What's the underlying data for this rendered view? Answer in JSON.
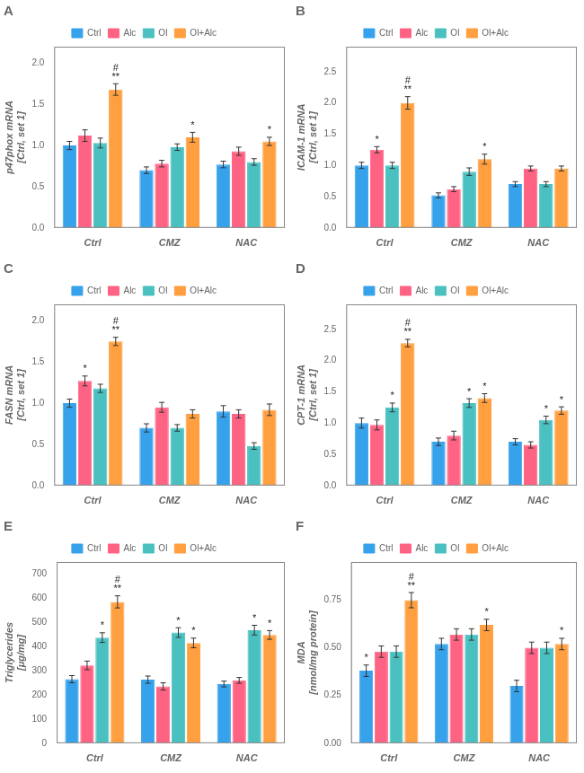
{
  "chart_data": [
    {
      "type": "bar",
      "title": "A",
      "ylabel": "p47phox mRNA\n[Ctrl, set 1]",
      "categories": [
        "Ctrl",
        "CMZ",
        "NAC"
      ],
      "series": [
        {
          "name": "Ctrl",
          "color": "#36a2eb",
          "values": [
            1.0,
            0.7,
            0.77
          ],
          "errors": [
            0.05,
            0.04,
            0.04
          ]
        },
        {
          "name": "Alc",
          "color": "#ff6384",
          "values": [
            1.12,
            0.78,
            0.93
          ],
          "errors": [
            0.07,
            0.04,
            0.05
          ]
        },
        {
          "name": "Ol",
          "color": "#4bc0c0",
          "values": [
            1.03,
            0.98,
            0.8
          ],
          "errors": [
            0.06,
            0.04,
            0.04
          ]
        },
        {
          "name": "Ol+Alc",
          "color": "#ff9f40",
          "values": [
            1.68,
            1.1,
            1.05
          ],
          "errors": [
            0.07,
            0.06,
            0.05
          ],
          "annotations": [
            [
              "**",
              "#"
            ],
            [
              "*"
            ],
            [
              "*"
            ]
          ]
        }
      ],
      "ylim": [
        0.0,
        2.2
      ],
      "yticks": [
        {
          "value": 0.0,
          "label": "0.0"
        },
        0.5,
        {
          "value": 1.0,
          "label": "1.0"
        },
        1.5,
        {
          "value": 2.0,
          "label": "2.0"
        }
      ],
      "grid": false,
      "legend": "top"
    },
    {
      "type": "bar",
      "title": "B",
      "ylabel": "ICAM-1 mRNA\n[Ctrl, set 1]",
      "categories": [
        "Ctrl",
        "CMZ",
        "NAC"
      ],
      "series": [
        {
          "name": "Ctrl",
          "color": "#36a2eb",
          "values": [
            1.0,
            0.52,
            0.7
          ],
          "errors": [
            0.05,
            0.04,
            0.04
          ]
        },
        {
          "name": "Alc",
          "color": "#ff6384",
          "values": [
            1.25,
            0.62,
            0.95
          ],
          "errors": [
            0.05,
            0.04,
            0.04
          ],
          "annotations": [
            [
              "*"
            ],
            null,
            null
          ]
        },
        {
          "name": "Ol",
          "color": "#4bc0c0",
          "values": [
            1.0,
            0.9,
            0.7
          ],
          "errors": [
            0.05,
            0.06,
            0.04
          ]
        },
        {
          "name": "Ol+Alc",
          "color": "#ff9f40",
          "values": [
            2.0,
            1.1,
            0.95
          ],
          "errors": [
            0.1,
            0.08,
            0.04
          ],
          "annotations": [
            [
              "**",
              "#"
            ],
            [
              "*"
            ],
            null
          ]
        }
      ],
      "ylim": [
        0.0,
        2.9
      ],
      "yticks": [
        {
          "value": 0.0,
          "label": "0.0"
        },
        0.5,
        {
          "value": 1.0,
          "label": "1.0"
        },
        1.5,
        {
          "value": 2.0,
          "label": "2.0"
        },
        2.5
      ],
      "grid": false,
      "legend": "top"
    },
    {
      "type": "bar",
      "title": "C",
      "ylabel": "FASN mRNA\n[Ctrl, set 1]",
      "categories": [
        "Ctrl",
        "CMZ",
        "NAC"
      ],
      "series": [
        {
          "name": "Ctrl",
          "color": "#36a2eb",
          "values": [
            1.0,
            0.7,
            0.9
          ],
          "errors": [
            0.05,
            0.05,
            0.07
          ]
        },
        {
          "name": "Alc",
          "color": "#ff6384",
          "values": [
            1.27,
            0.95,
            0.87
          ],
          "errors": [
            0.06,
            0.06,
            0.05
          ],
          "annotations": [
            [
              "*"
            ],
            null,
            null
          ]
        },
        {
          "name": "Ol",
          "color": "#4bc0c0",
          "values": [
            1.18,
            0.7,
            0.48
          ],
          "errors": [
            0.05,
            0.04,
            0.04
          ]
        },
        {
          "name": "Ol+Alc",
          "color": "#ff9f40",
          "values": [
            1.75,
            0.87,
            0.92
          ],
          "errors": [
            0.05,
            0.05,
            0.07
          ],
          "annotations": [
            [
              "**",
              "#"
            ],
            null,
            null
          ]
        }
      ],
      "ylim": [
        0.0,
        2.2
      ],
      "yticks": [
        {
          "value": 0.0,
          "label": "0.0"
        },
        0.5,
        {
          "value": 1.0,
          "label": "1.0"
        },
        1.5,
        {
          "value": 2.0,
          "label": "2.0"
        }
      ],
      "grid": false,
      "legend": "top"
    },
    {
      "type": "bar",
      "title": "D",
      "ylabel": "CPT-1 mRNA\n[Ctrl, set 1]",
      "categories": [
        "Ctrl",
        "CMZ",
        "NAC"
      ],
      "series": [
        {
          "name": "Ctrl",
          "color": "#36a2eb",
          "values": [
            1.0,
            0.7,
            0.7
          ],
          "errors": [
            0.08,
            0.06,
            0.05
          ]
        },
        {
          "name": "Alc",
          "color": "#ff6384",
          "values": [
            0.97,
            0.8,
            0.65
          ],
          "errors": [
            0.08,
            0.07,
            0.05
          ]
        },
        {
          "name": "Ol",
          "color": "#4bc0c0",
          "values": [
            1.25,
            1.32,
            1.05
          ],
          "errors": [
            0.07,
            0.07,
            0.06
          ],
          "annotations": [
            [
              "*"
            ],
            [
              "*"
            ],
            [
              "*"
            ]
          ]
        },
        {
          "name": "Ol+Alc",
          "color": "#ff9f40",
          "values": [
            2.28,
            1.4,
            1.2
          ],
          "errors": [
            0.06,
            0.07,
            0.06
          ],
          "annotations": [
            [
              "**",
              "#"
            ],
            [
              "*"
            ],
            [
              "*"
            ]
          ]
        }
      ],
      "ylim": [
        0.0,
        2.9
      ],
      "yticks": [
        {
          "value": 0.0,
          "label": "0.0"
        },
        0.5,
        {
          "value": 1.0,
          "label": "1.0"
        },
        1.5,
        {
          "value": 2.0,
          "label": "2.0"
        },
        2.5
      ],
      "grid": false,
      "legend": "top"
    },
    {
      "type": "bar",
      "title": "E",
      "ylabel": "Triglycerides\n[μg/mg]",
      "categories": [
        "Ctrl",
        "CMZ",
        "NAC"
      ],
      "series": [
        {
          "name": "Ctrl",
          "color": "#36a2eb",
          "values": [
            265,
            263,
            245
          ],
          "errors": [
            15,
            15,
            12
          ]
        },
        {
          "name": "Alc",
          "color": "#ff6384",
          "values": [
            322,
            235,
            260
          ],
          "errors": [
            18,
            15,
            12
          ]
        },
        {
          "name": "Ol",
          "color": "#4bc0c0",
          "values": [
            437,
            458,
            468
          ],
          "errors": [
            20,
            20,
            20
          ],
          "annotations": [
            [
              "*"
            ],
            [
              "*"
            ],
            [
              "*"
            ]
          ]
        },
        {
          "name": "Ol+Alc",
          "color": "#ff9f40",
          "values": [
            585,
            415,
            448
          ],
          "errors": [
            25,
            20,
            18
          ],
          "annotations": [
            [
              "**",
              "#"
            ],
            [
              "*"
            ],
            [
              "*"
            ]
          ]
        }
      ],
      "ylim": [
        0,
        750
      ],
      "yticks": [
        0,
        100,
        200,
        300,
        400,
        500,
        600,
        700
      ],
      "grid": false,
      "legend": "top"
    },
    {
      "type": "bar",
      "title": "F",
      "ylabel": "MDA\n[nmol/mg protein]",
      "categories": [
        "Ctrl",
        "CMZ",
        "NAC"
      ],
      "series": [
        {
          "name": "Ctrl",
          "color": "#36a2eb",
          "values": [
            0.38,
            0.52,
            0.3
          ],
          "errors": [
            0.03,
            0.03,
            0.03
          ],
          "annotations": [
            [
              "*"
            ],
            null,
            null
          ]
        },
        {
          "name": "Alc",
          "color": "#ff6384",
          "values": [
            0.48,
            0.57,
            0.5
          ],
          "errors": [
            0.03,
            0.03,
            0.03
          ]
        },
        {
          "name": "Ol",
          "color": "#4bc0c0",
          "values": [
            0.48,
            0.57,
            0.5
          ],
          "errors": [
            0.03,
            0.03,
            0.03
          ]
        },
        {
          "name": "Ol+Alc",
          "color": "#ff9f40",
          "values": [
            0.75,
            0.62,
            0.52
          ],
          "errors": [
            0.04,
            0.03,
            0.03
          ],
          "annotations": [
            [
              "**",
              "#"
            ],
            [
              "*"
            ],
            [
              "*"
            ]
          ]
        }
      ],
      "ylim": [
        0.0,
        0.95
      ],
      "yticks": [
        {
          "value": 0.0,
          "label": "0.00"
        },
        0.25,
        {
          "value": 0.5,
          "label": "0.50"
        },
        0.75
      ],
      "grid": false,
      "legend": "top"
    }
  ]
}
